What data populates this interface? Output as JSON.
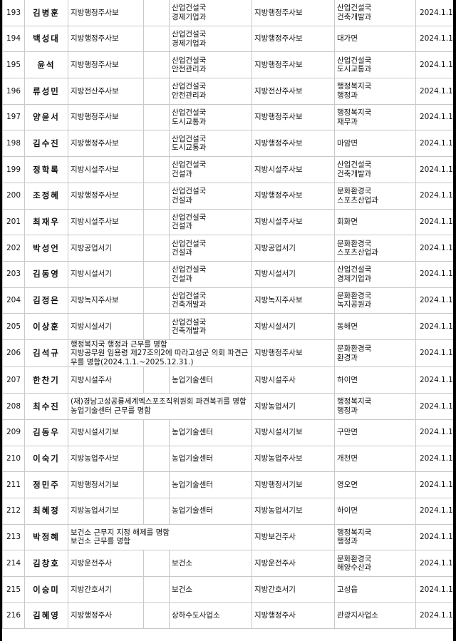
{
  "rows": [
    {
      "no": "193",
      "name": "김병훈",
      "rank": "지방행정주사보",
      "dept": "산업건설국\n경제기업과",
      "new_rank": "지방행정주사보",
      "new_dept": "산업건설국\n건축개발과",
      "date": "2024.1.1."
    },
    {
      "no": "194",
      "name": "백성대",
      "rank": "지방행정주사보",
      "dept": "산업건설국\n경제기업과",
      "new_rank": "지방행정주사보",
      "new_dept": "대가면",
      "date": "2024.1.1."
    },
    {
      "no": "195",
      "name": "윤석",
      "rank": "지방행정주사보",
      "dept": "산업건설국\n안전관리과",
      "new_rank": "지방행정주사보",
      "new_dept": "산업건설국\n도시교통과",
      "date": "2024.1.1."
    },
    {
      "no": "196",
      "name": "류성민",
      "rank": "지방전산주사보",
      "dept": "산업건설국\n안전관리과",
      "new_rank": "지방전산주사보",
      "new_dept": "행정복지국\n행정과",
      "date": "2024.1.1."
    },
    {
      "no": "197",
      "name": "양윤서",
      "rank": "지방행정주사보",
      "dept": "산업건설국\n도시교통과",
      "new_rank": "지방행정주사보",
      "new_dept": "행정복지국\n재무과",
      "date": "2024.1.1."
    },
    {
      "no": "198",
      "name": "김수진",
      "rank": "지방행정주사보",
      "dept": "산업건설국\n도시교통과",
      "new_rank": "지방행정주사보",
      "new_dept": "마암면",
      "date": "2024.1.1."
    },
    {
      "no": "199",
      "name": "정학록",
      "rank": "지방시설주사보",
      "dept": "산업건설국\n건설과",
      "new_rank": "지방시설주사보",
      "new_dept": "산업건설국\n건축개발과",
      "date": "2024.1.1."
    },
    {
      "no": "200",
      "name": "조정혜",
      "rank": "지방행정주사보",
      "dept": "산업건설국\n건설과",
      "new_rank": "지방행정주사보",
      "new_dept": "문화환경국\n스포츠산업과",
      "date": "2024.1.1."
    },
    {
      "no": "201",
      "name": "최재우",
      "rank": "지방시설주사보",
      "dept": "산업건설국\n건설과",
      "new_rank": "지방시설주사보",
      "new_dept": "회화면",
      "date": "2024.1.1."
    },
    {
      "no": "202",
      "name": "박성언",
      "rank": "지방공업서기",
      "dept": "산업건설국\n건설과",
      "new_rank": "지방공업서기",
      "new_dept": "문화환경국\n스포츠산업과",
      "date": "2024.1.1."
    },
    {
      "no": "203",
      "name": "김동영",
      "rank": "지방시설서기",
      "dept": "산업건설국\n건설과",
      "new_rank": "지방시설서기",
      "new_dept": "산업건설국\n경제기업과",
      "date": "2024.1.1."
    },
    {
      "no": "204",
      "name": "김정은",
      "rank": "지방녹지주사보",
      "dept": "산업건설국\n건축개발과",
      "new_rank": "지방녹지주사보",
      "new_dept": "문화환경국\n녹지공원과",
      "date": "2024.1.1."
    },
    {
      "no": "205",
      "name": "이상훈",
      "rank": "지방시설서기",
      "dept": "산업건설국\n건축개발과",
      "new_rank": "지방시설서기",
      "new_dept": "동해면",
      "date": "2024.1.1."
    },
    {
      "no": "206",
      "name": "김석규",
      "note": "행정복지국 행정과 근무를 명함\n지방공무원 임용령 제27조의2에 따라고성군 의회 파견근무를 명함(2024.1.1.~2025.12.31.)",
      "new_rank": "지방행정주사보",
      "new_dept": "문화환경국\n환경과",
      "date": "2024.1.1."
    },
    {
      "no": "207",
      "name": "한찬기",
      "rank": "지방시설주사",
      "dept": "농업기술센터",
      "new_rank": "지방시설주사",
      "new_dept": "하이면",
      "date": "2024.1.1."
    },
    {
      "no": "208",
      "name": "최수진",
      "note": "(재)경남고성공룡세계엑스포조직위원회 파견복귀를 명함\n농업기술센터 근무를 명함",
      "new_rank": "지방농업서기",
      "new_dept": "행정복지국\n행정과",
      "date": "2024.1.1."
    },
    {
      "no": "209",
      "name": "김동우",
      "rank": "지방시설서기보",
      "dept": "농업기술센터",
      "new_rank": "지방시설서기보",
      "new_dept": "구만면",
      "date": "2024.1.1."
    },
    {
      "no": "210",
      "name": "이숙기",
      "rank": "지방농업주사보",
      "dept": "농업기술센터",
      "new_rank": "지방농업주사보",
      "new_dept": "개천면",
      "date": "2024.1.1."
    },
    {
      "no": "211",
      "name": "정민주",
      "rank": "지방행정서기보",
      "dept": "농업기술센터",
      "new_rank": "지방행정서기보",
      "new_dept": "영오면",
      "date": "2024.1.1."
    },
    {
      "no": "212",
      "name": "최혜정",
      "rank": "지방농업서기보",
      "dept": "농업기술센터",
      "new_rank": "지방농업서기보",
      "new_dept": "하이면",
      "date": "2024.1.1."
    },
    {
      "no": "213",
      "name": "박정혜",
      "note": "보건소 근무지 지정 해제를 명함\n보건소 근무를 명함",
      "new_rank": "지방보건주사",
      "new_dept": "행정복지국\n행정과",
      "date": "2024.1.1."
    },
    {
      "no": "214",
      "name": "김창호",
      "rank": "지방운전주사",
      "dept": "보건소",
      "new_rank": "지방운전주사",
      "new_dept": "문화환경국\n해양수산과",
      "date": "2024.1.1."
    },
    {
      "no": "215",
      "name": "이승미",
      "rank": "지방간호서기",
      "dept": "보건소",
      "new_rank": "지방간호서기",
      "new_dept": "고성읍",
      "date": "2024.1.1."
    },
    {
      "no": "216",
      "name": "김혜영",
      "rank": "지방행정주사",
      "dept": "상하수도사업소",
      "new_rank": "지방행정주사",
      "new_dept": "관광지사업소",
      "date": "2024.1.1."
    }
  ]
}
